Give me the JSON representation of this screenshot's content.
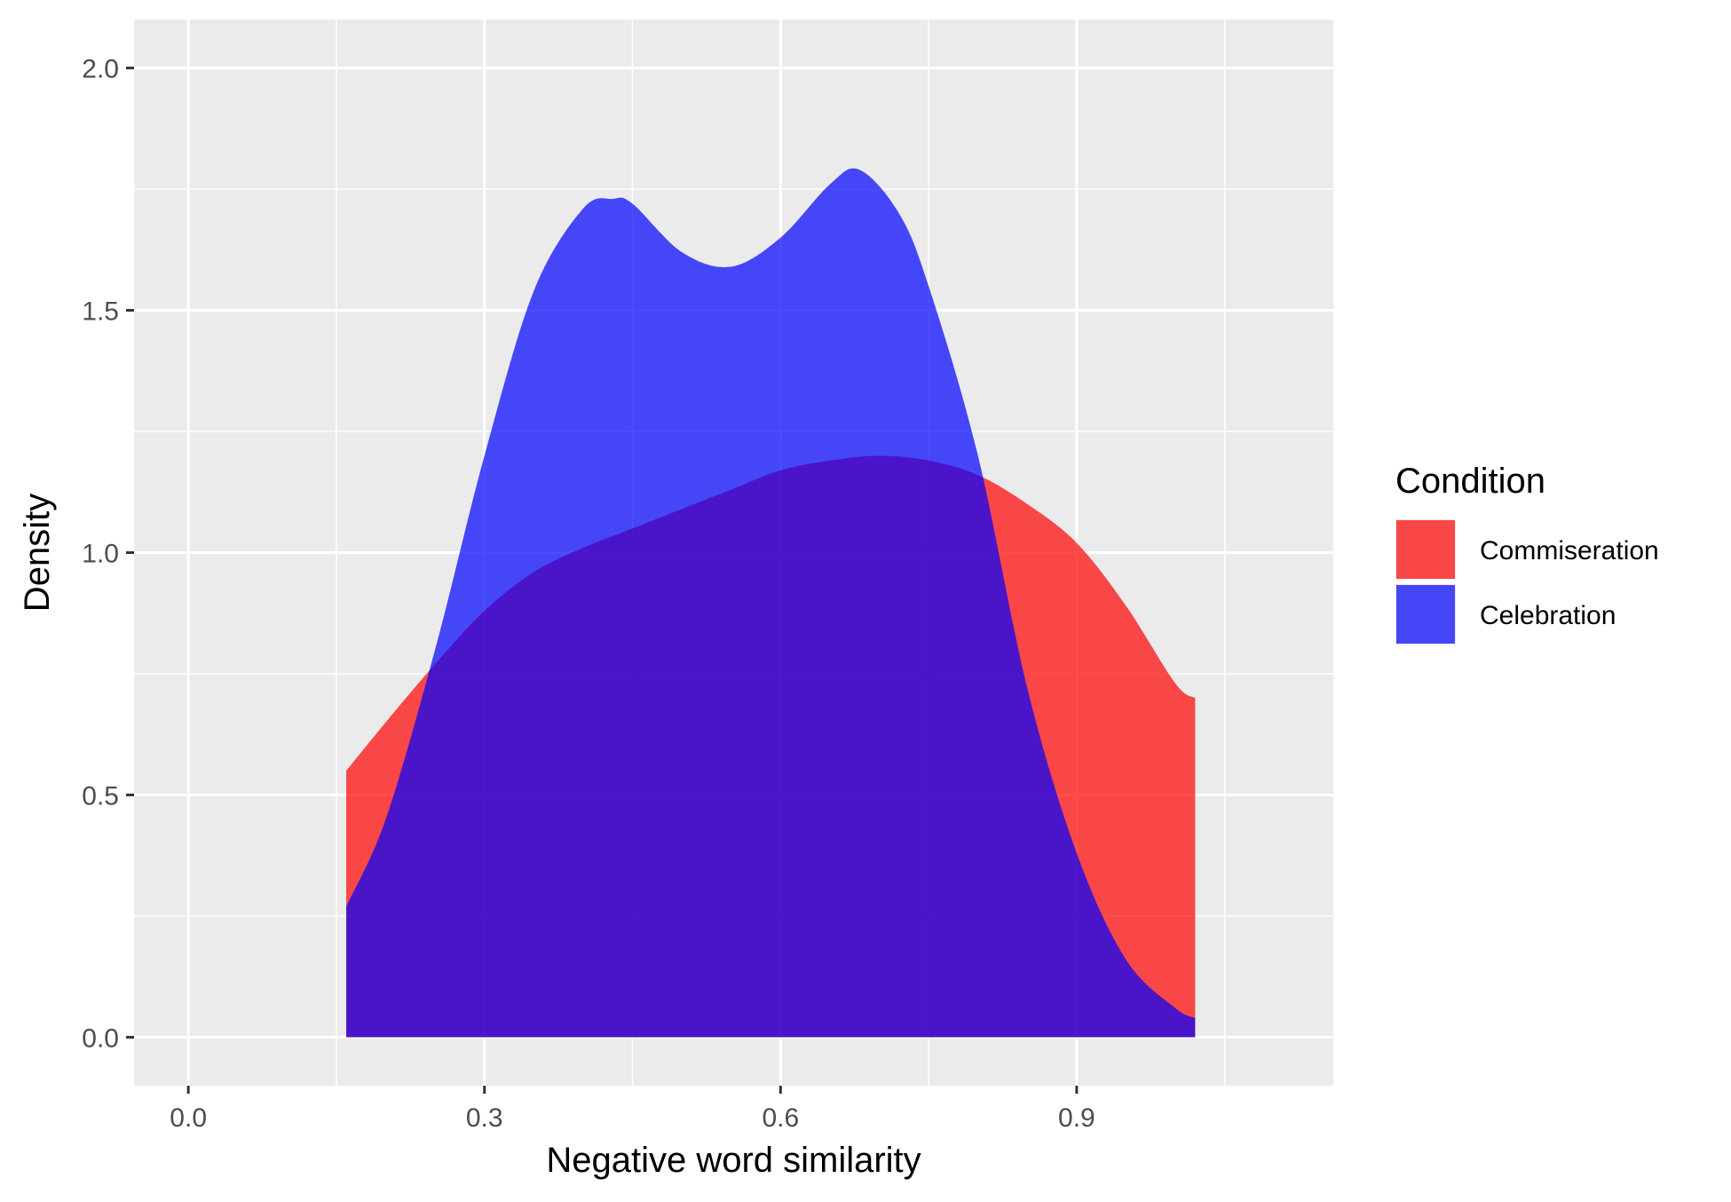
{
  "chart_data": {
    "type": "area",
    "subtype": "density",
    "title": "",
    "xlabel": "Negative word similarity",
    "ylabel": "Density",
    "xlim": [
      -0.055,
      1.16
    ],
    "ylim": [
      -0.1,
      2.1
    ],
    "x_ticks": [
      0.0,
      0.3,
      0.6,
      0.9
    ],
    "x_tick_labels": [
      "0.0",
      "0.3",
      "0.6",
      "0.9"
    ],
    "y_ticks": [
      0.0,
      0.5,
      1.0,
      1.5,
      2.0
    ],
    "y_tick_labels": [
      "0.0",
      "0.5",
      "1.0",
      "1.5",
      "2.0"
    ],
    "grid": true,
    "panel_background": "#ebebeb",
    "legend": {
      "title": "Condition",
      "position": "right"
    },
    "series": [
      {
        "name": "Commiseration",
        "color": "#ff0000",
        "opacity": 0.7,
        "x": [
          0.16,
          0.2,
          0.25,
          0.3,
          0.35,
          0.4,
          0.45,
          0.5,
          0.55,
          0.6,
          0.65,
          0.7,
          0.75,
          0.8,
          0.85,
          0.9,
          0.95,
          1.0,
          1.02
        ],
        "y": [
          0.55,
          0.65,
          0.77,
          0.88,
          0.96,
          1.01,
          1.05,
          1.09,
          1.13,
          1.17,
          1.19,
          1.2,
          1.19,
          1.16,
          1.1,
          1.02,
          0.89,
          0.73,
          0.7
        ]
      },
      {
        "name": "Celebration",
        "color": "#0000ff",
        "opacity": 0.7,
        "x": [
          0.16,
          0.2,
          0.25,
          0.3,
          0.35,
          0.4,
          0.43,
          0.45,
          0.5,
          0.55,
          0.6,
          0.65,
          0.68,
          0.72,
          0.75,
          0.8,
          0.85,
          0.9,
          0.95,
          1.0,
          1.02
        ],
        "y": [
          0.27,
          0.45,
          0.8,
          1.2,
          1.54,
          1.71,
          1.73,
          1.72,
          1.62,
          1.59,
          1.65,
          1.76,
          1.79,
          1.7,
          1.55,
          1.2,
          0.72,
          0.38,
          0.16,
          0.06,
          0.04
        ]
      }
    ]
  }
}
